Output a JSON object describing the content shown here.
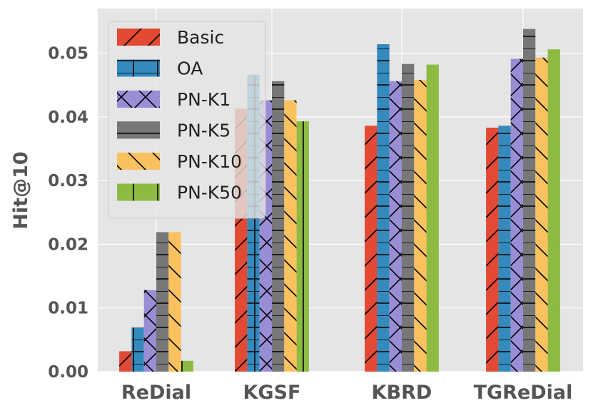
{
  "chart_data": {
    "type": "bar",
    "title": "",
    "xlabel": "",
    "ylabel": "Hit@10",
    "ylim": [
      0,
      0.057
    ],
    "yticks": [
      0.0,
      0.01,
      0.02,
      0.03,
      0.04,
      0.05
    ],
    "ytick_labels": [
      "0.00",
      "0.01",
      "0.02",
      "0.03",
      "0.04",
      "0.05"
    ],
    "grid": true,
    "legend_position": "top-left",
    "categories": [
      "ReDial",
      "KGSF",
      "KBRD",
      "TGReDial"
    ],
    "series": [
      {
        "name": "Basic",
        "color": "#E24A33",
        "hatch": "/",
        "values": [
          0.0032,
          0.0413,
          0.0386,
          0.0383
        ]
      },
      {
        "name": "OA",
        "color": "#348ABD",
        "hatch": "+",
        "values": [
          0.0069,
          0.0466,
          0.0514,
          0.0386
        ]
      },
      {
        "name": "PN-K1",
        "color": "#988ED5",
        "hatch": "x",
        "values": [
          0.0128,
          0.0426,
          0.0456,
          0.0491
        ]
      },
      {
        "name": "PN-K5",
        "color": "#777777",
        "hatch": "-",
        "values": [
          0.0219,
          0.0456,
          0.0483,
          0.0538
        ]
      },
      {
        "name": "PN-K10",
        "color": "#FBC15E",
        "hatch": "\\",
        "values": [
          0.0219,
          0.0426,
          0.0458,
          0.0493
        ]
      },
      {
        "name": "PN-K50",
        "color": "#8EBA42",
        "hatch": "|",
        "values": [
          0.0017,
          0.0393,
          0.0482,
          0.0506
        ]
      }
    ]
  }
}
